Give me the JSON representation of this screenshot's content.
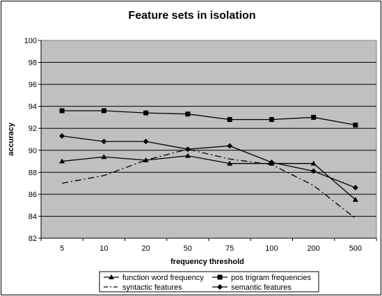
{
  "chart_data": {
    "type": "line",
    "title": "Feature sets in isolation",
    "xlabel": "frequency threshold",
    "ylabel": "accuracy",
    "categories": [
      "5",
      "10",
      "20",
      "50",
      "75",
      "100",
      "200",
      "500"
    ],
    "ylim": [
      82,
      100
    ],
    "yticks": [
      "82",
      "84",
      "86",
      "88",
      "90",
      "92",
      "94",
      "96",
      "98",
      "100"
    ],
    "grid": "horizontal",
    "legend_position": "bottom",
    "plot_background": "#c0c0c0",
    "series": [
      {
        "name": "function word frequency",
        "marker": "triangle",
        "line": "solid",
        "values": [
          89.0,
          89.4,
          89.1,
          89.5,
          88.8,
          88.8,
          88.8,
          85.5
        ]
      },
      {
        "name": "pos trigram frequencies",
        "marker": "square",
        "line": "solid",
        "values": [
          93.6,
          93.6,
          93.4,
          93.3,
          92.8,
          92.8,
          93.0,
          92.3
        ]
      },
      {
        "name": "syntactic features",
        "marker": "none",
        "line": "dash-dot",
        "values": [
          87.0,
          87.7,
          89.1,
          90.1,
          89.2,
          88.7,
          86.8,
          83.8
        ]
      },
      {
        "name": "semantic features",
        "marker": "diamond",
        "line": "solid",
        "values": [
          91.3,
          90.8,
          90.8,
          90.1,
          90.4,
          88.9,
          88.1,
          86.6
        ]
      }
    ]
  }
}
